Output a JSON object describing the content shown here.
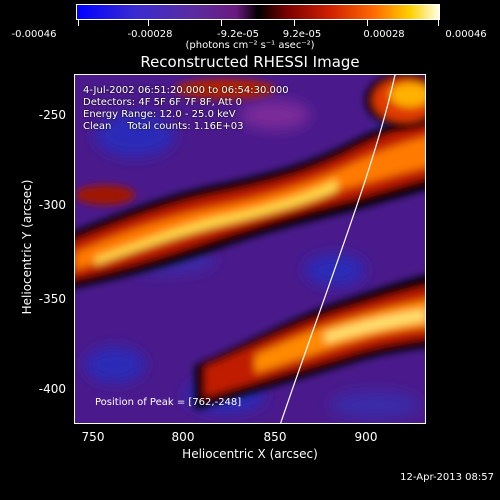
{
  "colorbar": {
    "ticks": [
      "-0.00046",
      "-0.00028",
      "-9.2e-05",
      "9.2e-05",
      "0.00028",
      "0.00046"
    ],
    "units": "(photons cm⁻² s⁻¹ asec⁻²)"
  },
  "title": "Reconstructed RHESSI Image",
  "info": {
    "time": "4-Jul-2002 06:51:20.000 to 06:54:30.000",
    "detectors": "Detectors: 4F 5F 6F 7F 8F, Att 0",
    "energy": "Energy Range: 12.0 - 25.0 keV",
    "clean": "Clean     Total counts: 1.16E+03"
  },
  "peak": "Position of Peak = [762,-248]",
  "axes": {
    "xlabel": "Heliocentric X (arcsec)",
    "ylabel": "Heliocentric Y (arcsec)",
    "xticks": [
      "750",
      "800",
      "850",
      "900"
    ],
    "yticks": [
      "-250",
      "-300",
      "-350",
      "-400"
    ]
  },
  "footer": "12-Apr-2013 08:57"
}
